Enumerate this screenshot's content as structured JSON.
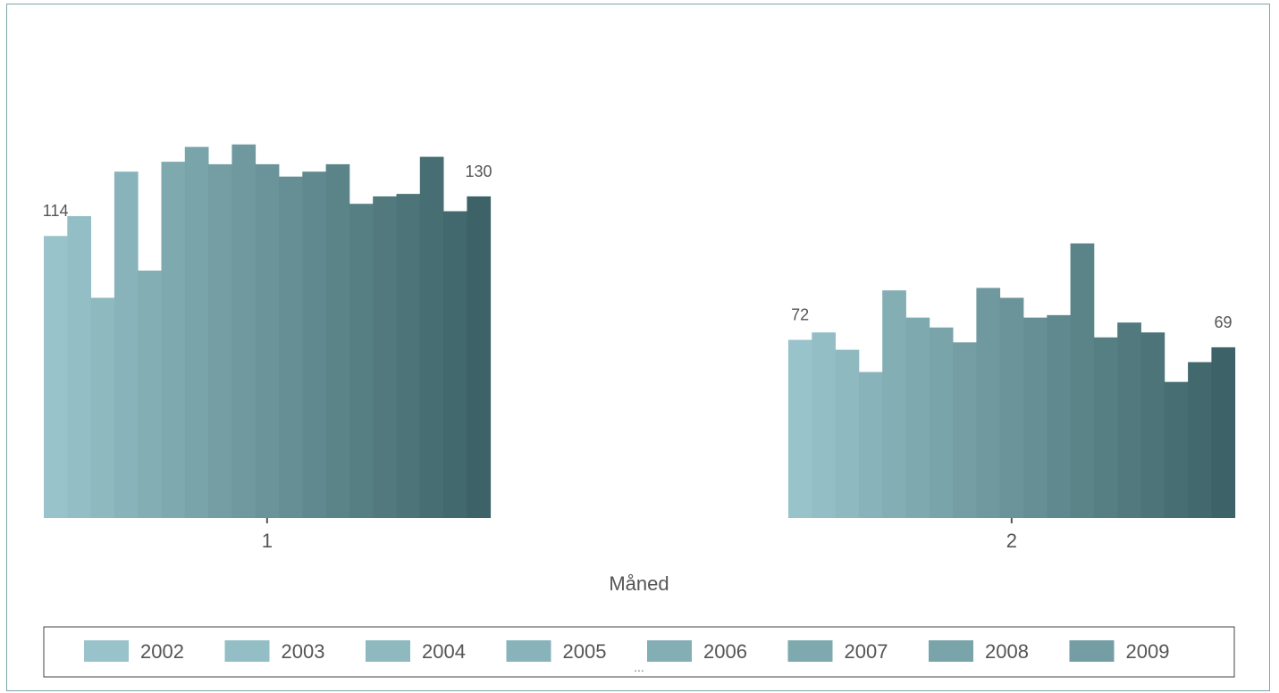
{
  "chart_data": {
    "type": "bar",
    "xlabel": "Måned",
    "ylabel": "",
    "title": "",
    "categories": [
      "1",
      "2"
    ],
    "ylim": [
      0,
      200
    ],
    "grid": false,
    "legend_position": "bottom",
    "legend_overflow_text": "...",
    "series": [
      {
        "name": "2002",
        "color": "#98c3ca",
        "values": [
          114,
          72
        ]
      },
      {
        "name": "2003",
        "color": "#93bec5",
        "values": [
          122,
          75
        ]
      },
      {
        "name": "2004",
        "color": "#8db9bf",
        "values": [
          89,
          68
        ]
      },
      {
        "name": "2005",
        "color": "#88b3ba",
        "values": [
          140,
          59
        ]
      },
      {
        "name": "2006",
        "color": "#83aeb4",
        "values": [
          100,
          92
        ]
      },
      {
        "name": "2007",
        "color": "#7ea9af",
        "values": [
          144,
          81
        ]
      },
      {
        "name": "2008",
        "color": "#79a4aa",
        "values": [
          150,
          77
        ]
      },
      {
        "name": "2009",
        "color": "#749ea4",
        "values": [
          143,
          71
        ]
      },
      {
        "name": "",
        "color": "#6f999f",
        "values": [
          151,
          93
        ]
      },
      {
        "name": "",
        "color": "#6a9499",
        "values": [
          143,
          89
        ]
      },
      {
        "name": "",
        "color": "#658f94",
        "values": [
          138,
          81
        ]
      },
      {
        "name": "",
        "color": "#60898f",
        "values": [
          140,
          82
        ]
      },
      {
        "name": "",
        "color": "#5b8489",
        "values": [
          143,
          111
        ]
      },
      {
        "name": "",
        "color": "#567f84",
        "values": [
          127,
          73
        ]
      },
      {
        "name": "",
        "color": "#51797e",
        "values": [
          130,
          79
        ]
      },
      {
        "name": "",
        "color": "#4c7479",
        "values": [
          131,
          75
        ]
      },
      {
        "name": "",
        "color": "#476e73",
        "values": [
          146,
          55
        ]
      },
      {
        "name": "",
        "color": "#42696e",
        "values": [
          124,
          63
        ]
      },
      {
        "name": "",
        "color": "#3d6368",
        "values": [
          130,
          69
        ]
      }
    ],
    "data_labels": [
      {
        "category": "1",
        "series_index": 0,
        "text": "114"
      },
      {
        "category": "1",
        "series_index": 18,
        "text": "130"
      },
      {
        "category": "2",
        "series_index": 0,
        "text": "72"
      },
      {
        "category": "2",
        "series_index": 18,
        "text": "69"
      }
    ]
  }
}
